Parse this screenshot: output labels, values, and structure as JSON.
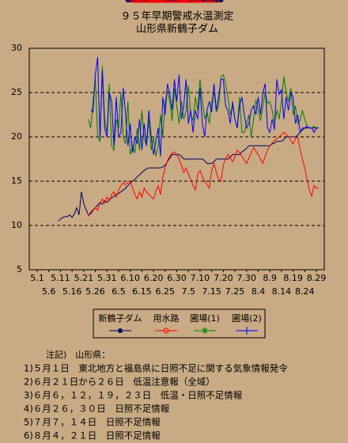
{
  "chart_data": {
    "type": "line",
    "title": "９５年早期警戒水温測定",
    "subtitle": "山形県新鶴子ダム",
    "xlim": [
      -3.4,
      123.4
    ],
    "xticks": [
      {
        "value": 0,
        "label": "5.1"
      },
      {
        "value": 5,
        "label": "5.6"
      },
      {
        "value": 10,
        "label": "5.11"
      },
      {
        "value": 15,
        "label": "5.16"
      },
      {
        "value": 20,
        "label": "5.21"
      },
      {
        "value": 25,
        "label": "5.26"
      },
      {
        "value": 30,
        "label": "5.31"
      },
      {
        "value": 35,
        "label": "6.5"
      },
      {
        "value": 40,
        "label": "6.10"
      },
      {
        "value": 45,
        "label": "6.15"
      },
      {
        "value": 50,
        "label": "6.20"
      },
      {
        "value": 55,
        "label": "6.25"
      },
      {
        "value": 60,
        "label": "6.30"
      },
      {
        "value": 65,
        "label": "7.5"
      },
      {
        "value": 70,
        "label": "7.10"
      },
      {
        "value": 75,
        "label": "7.15"
      },
      {
        "value": 80,
        "label": "7.20"
      },
      {
        "value": 85,
        "label": "7.25"
      },
      {
        "value": 90,
        "label": "7.30"
      },
      {
        "value": 95,
        "label": "8.4"
      },
      {
        "value": 100,
        "label": "8.9"
      },
      {
        "value": 105,
        "label": "8.14"
      },
      {
        "value": 110,
        "label": "8.19"
      },
      {
        "value": 115,
        "label": "8.24"
      },
      {
        "value": 120,
        "label": "8.29"
      }
    ],
    "ylim": [
      5,
      30
    ],
    "yticks": [
      5,
      10,
      15,
      20,
      25,
      30
    ],
    "grid": true,
    "x": [
      9,
      10,
      11,
      12,
      13,
      14,
      15,
      16,
      17,
      18,
      19,
      20,
      21,
      22,
      23,
      24,
      25,
      26,
      27,
      28,
      29,
      30,
      31,
      32,
      33,
      34,
      35,
      36,
      37,
      38,
      39,
      40,
      41,
      42,
      43,
      44,
      45,
      46,
      47,
      48,
      49,
      50,
      51,
      52,
      53,
      54,
      55,
      56,
      57,
      58,
      59,
      60,
      61,
      62,
      63,
      64,
      65,
      66,
      67,
      68,
      69,
      70,
      71,
      72,
      73,
      74,
      75,
      76,
      77,
      78,
      79,
      80,
      81,
      82,
      83,
      84,
      85,
      86,
      87,
      88,
      89,
      90,
      91,
      92,
      93,
      94,
      95,
      96,
      97,
      98,
      99,
      100,
      101,
      102,
      103,
      104,
      105,
      106,
      107,
      108,
      109,
      110,
      111,
      112,
      113,
      114,
      115,
      116,
      117,
      118,
      119,
      120,
      121
    ],
    "series": [
      {
        "name": "新鶴子ダム",
        "color": "#000060",
        "marker": "dot",
        "values": [
          10.5,
          10.7,
          10.9,
          11,
          11,
          11.2,
          10.9,
          11.3,
          12,
          11.2,
          13.8,
          12.5,
          11.8,
          11.2,
          11.3,
          11.7,
          12,
          12.3,
          12.6,
          12.4,
          12.8,
          12.6,
          12.9,
          13.1,
          13.3,
          13.5,
          13.6,
          13.8,
          14,
          14.2,
          14.5,
          14.8,
          15,
          15.2,
          15.5,
          15.7,
          16,
          16.2,
          16.4,
          16.5,
          16.5,
          16.5,
          16.5,
          16.5,
          16.5,
          16.6,
          16.8,
          17.2,
          17.6,
          18,
          18,
          18,
          18,
          17.8,
          17.5,
          17.5,
          17.5,
          17.5,
          17.5,
          17.5,
          17.5,
          17.5,
          17.5,
          17.3,
          17,
          17,
          17,
          17.2,
          17.5,
          17.5,
          17.5,
          17.5,
          17.5,
          17.5,
          17.7,
          18,
          18,
          18,
          18,
          18.3,
          18.5,
          18.7,
          19,
          19,
          19,
          19,
          19,
          19,
          19,
          19,
          19,
          19,
          19.2,
          19.3,
          19.5,
          19.5,
          19.5,
          19.7,
          20,
          20,
          20,
          20,
          20,
          20.2,
          20.5,
          20.8,
          21,
          21,
          21,
          21,
          21,
          21,
          21
        ]
      },
      {
        "name": "用水路",
        "color": "#ff0000",
        "marker": "circle",
        "values": [
          null,
          null,
          null,
          null,
          null,
          null,
          null,
          null,
          null,
          null,
          null,
          null,
          null,
          11,
          11.5,
          11.8,
          12,
          11.7,
          12.5,
          13,
          12.5,
          13.2,
          12.8,
          13.5,
          13.8,
          13.2,
          14,
          14.5,
          14.8,
          14.6,
          14.9,
          15,
          14.2,
          13.5,
          13,
          13.8,
          13.2,
          14.2,
          13.8,
          13.5,
          13.2,
          13,
          13.8,
          14.5,
          13.5,
          15.5,
          16.5,
          17.3,
          17.8,
          18.2,
          18.3,
          18,
          17.5,
          16.8,
          16,
          16.5,
          15.8,
          15.2,
          14.5,
          14,
          15.8,
          16.2,
          15.5,
          15,
          14.6,
          14.2,
          16.2,
          17,
          16,
          15.2,
          15,
          16.8,
          17.5,
          18,
          17.6,
          17.2,
          17.8,
          18.5,
          18.2,
          17.8,
          17.4,
          17,
          17.6,
          18.2,
          18.8,
          18.4,
          18,
          17.5,
          17,
          17.8,
          18.5,
          19,
          19.3,
          19.6,
          19.8,
          20,
          20.2,
          20.5,
          20.3,
          20,
          19.6,
          19.2,
          19.8,
          20,
          18.6,
          17.5,
          16.5,
          15.2,
          14,
          13.3,
          14.5,
          14.2,
          14.3
        ]
      },
      {
        "name": "圃場(1)",
        "color": "#008000",
        "marker": "star",
        "values": [
          null,
          null,
          null,
          null,
          null,
          null,
          null,
          null,
          null,
          null,
          null,
          null,
          null,
          22,
          21,
          24,
          26.5,
          20,
          19.5,
          28,
          22,
          20.5,
          26,
          19,
          18.5,
          22,
          21,
          25,
          20,
          19.2,
          24,
          18,
          19,
          18.2,
          21,
          18.5,
          23,
          19.8,
          19,
          22,
          18.5,
          20,
          17.8,
          19,
          22.5,
          20,
          24,
          25.2,
          24,
          21.8,
          25.5,
          23.5,
          21.5,
          24,
          22,
          23,
          25.8,
          22.5,
          21.8,
          24.5,
          23,
          26.5,
          24,
          22,
          22.8,
          21.5,
          24,
          25,
          22.8,
          23.5,
          26.8,
          27,
          26,
          24.5,
          22.5,
          23.5,
          22,
          21,
          24.5,
          20.5,
          20.5,
          21.5,
          22.5,
          20,
          22,
          24.2,
          23,
          21.8,
          23.5,
          25,
          23.8,
          24,
          23,
          21.5,
          23,
          22,
          24,
          26.8,
          25,
          24,
          25.5,
          22.5,
          23.5,
          21.5,
          21.8,
          23,
          22,
          21.2,
          21,
          21,
          21.2,
          21,
          21
        ]
      },
      {
        "name": "圃場(2)",
        "color": "#0000ff",
        "marker": "plus",
        "values": [
          null,
          null,
          null,
          null,
          null,
          null,
          null,
          null,
          null,
          null,
          null,
          null,
          null,
          null,
          23,
          22.8,
          27,
          29,
          19.8,
          27.5,
          21,
          20,
          25,
          24,
          19,
          24.5,
          20,
          20.5,
          25.5,
          22.5,
          19,
          21.5,
          18.2,
          20,
          19.2,
          22,
          18.5,
          21.5,
          19,
          23,
          20,
          18,
          19.5,
          21,
          17.8,
          24.5,
          22.5,
          26,
          24.8,
          23,
          26.5,
          24,
          27,
          22,
          23.5,
          26.5,
          21.5,
          23,
          20.5,
          23,
          22,
          25.5,
          21.5,
          20,
          23,
          24,
          22.8,
          26,
          23,
          24.5,
          26.5,
          26.5,
          23.5,
          23,
          21.5,
          24,
          22,
          21,
          23.5,
          24.5,
          22.5,
          21,
          21.5,
          23,
          23.5,
          22.5,
          24.5,
          22.5,
          25,
          26,
          21,
          20.5,
          22,
          20.8,
          26.5,
          24.8,
          25.3,
          22,
          24.5,
          23,
          25,
          24.5,
          21.5,
          22.5,
          20.5,
          21,
          21,
          21.2,
          21,
          21,
          20.5,
          21,
          21
        ]
      }
    ]
  },
  "notes": {
    "heading": "注記)　山形県：",
    "lines": [
      "1)５月１日　東北地方と福島県に日照不足に関する気象情報発令",
      "2)６月２１日から２６日　低温注意報（全域）",
      "3)６月６，１２，１９，２３日　低温・日照不足情報",
      "4)６月２６，３０日　日照不足情報",
      "5)７月７，１４日　日照不足情報",
      "6)８月４，２１日　日照不足情報"
    ]
  }
}
